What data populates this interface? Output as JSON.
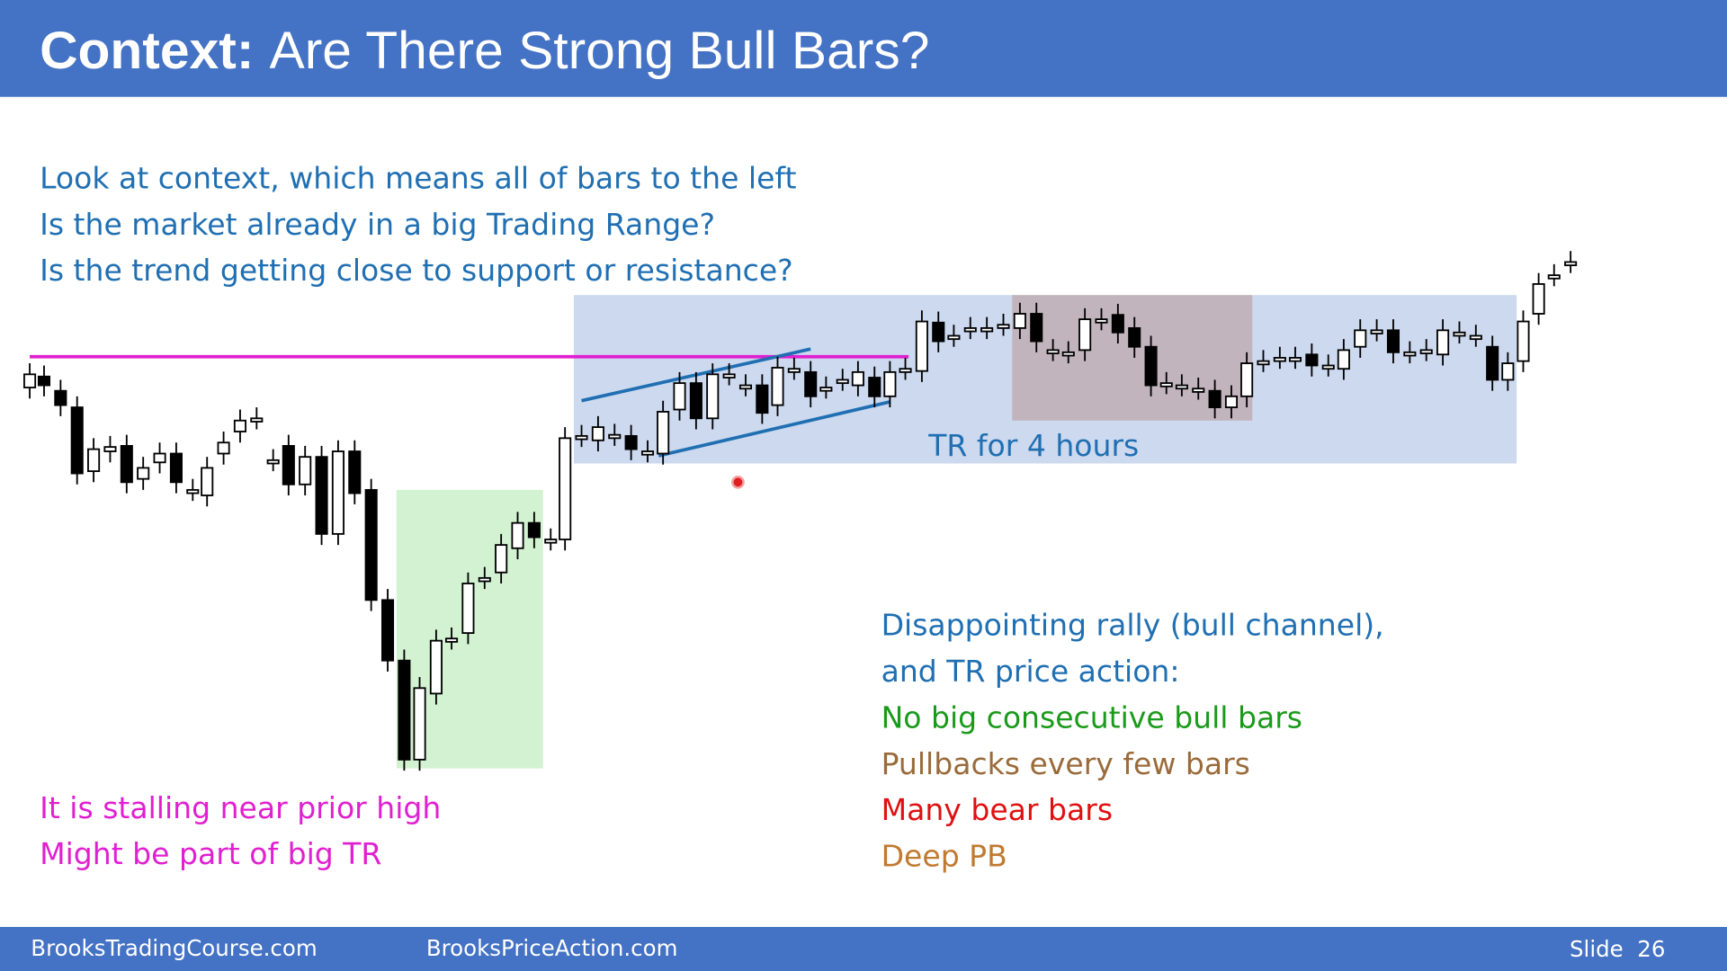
{
  "header": {
    "title_bold": "Context:",
    "title_rest": "Are There Strong Bull Bars?"
  },
  "intro": [
    "Look at context, which means all of bars to the left",
    "Is the market already in a big Trading Range?",
    "Is the trend getting close to support or resistance?"
  ],
  "chart_labels": {
    "range": "TR for 4 hours"
  },
  "left_notes": [
    "It is stalling near prior high",
    "Might be part of big TR"
  ],
  "right_notes": [
    "Disappointing rally (bull channel),",
    "and TR price action:",
    "No big consecutive bull bars",
    "Pullbacks every few bars",
    "Many bear bars",
    "Deep PB"
  ],
  "footer": {
    "left": "BrooksTradingCourse.com",
    "middle": "BrooksPriceAction.com",
    "slide": "Slide  26"
  }
}
